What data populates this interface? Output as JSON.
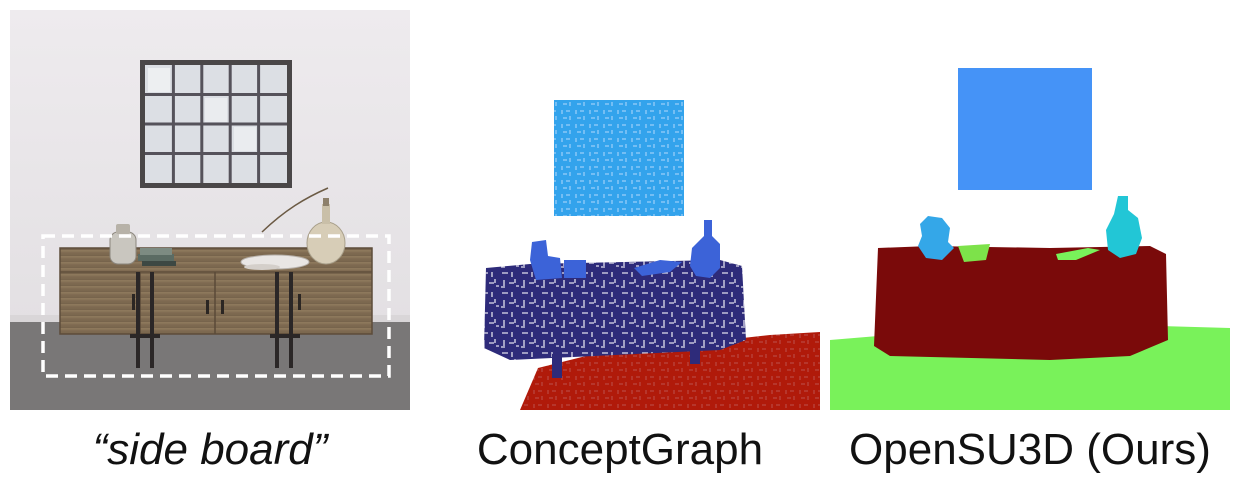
{
  "captions": {
    "query": "“side board”",
    "method_1": "ConceptGraph",
    "method_2": "OpenSU3D (Ours)"
  },
  "colors": {
    "cg_picture": "#33a3ec",
    "cg_sideboard": "#2e2b7a",
    "cg_floor": "#b01a0a",
    "cg_objects": "#3c63d8",
    "ours_picture": "#4593f7",
    "ours_sideboard": "#7a0a0a",
    "ours_floor": "#79f25a",
    "ours_vase": "#22c6d6",
    "ours_plant": "#34a7e8",
    "ours_bowl": "#7de24a",
    "photo_wall": "#ebe8eb",
    "photo_carpet": "#7d7b7b",
    "photo_wood": "#8a7559",
    "highlight_box": "#ffffff"
  },
  "icons": {
    "photo": "sideboard-photo",
    "method_1_render": "pointcloud-segmentation",
    "method_2_render": "pointcloud-segmentation"
  }
}
